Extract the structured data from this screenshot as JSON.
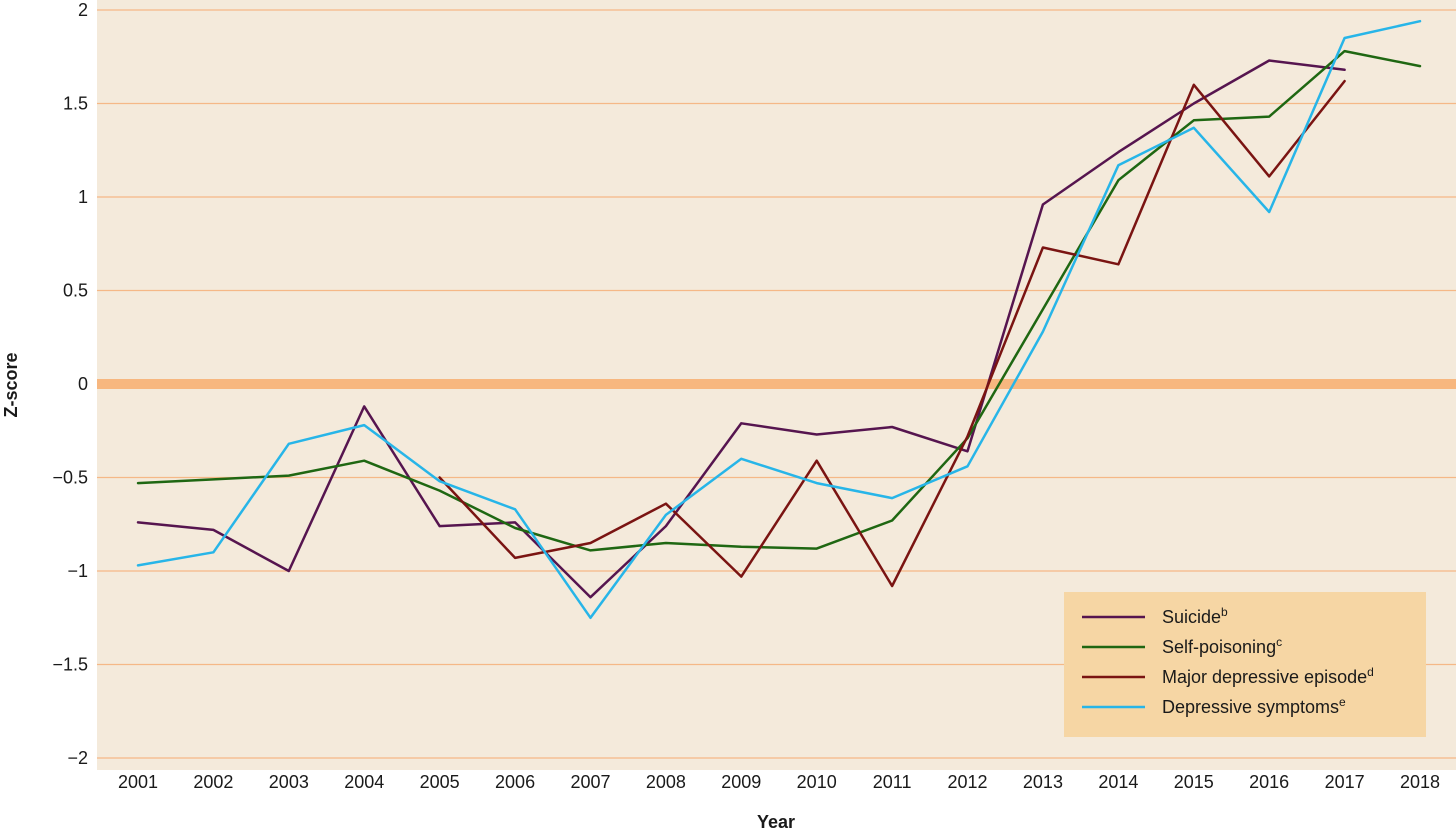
{
  "chart_data": {
    "type": "line",
    "title": "",
    "xlabel": "Year",
    "ylabel": "Z-score",
    "ylim": [
      -2,
      2
    ],
    "yticks": [
      2,
      1.5,
      1,
      0.5,
      0,
      -0.5,
      -1,
      -1.5,
      -2
    ],
    "ytick_labels": [
      "2",
      "1.5",
      "1",
      "0.5",
      "0",
      "−0.5",
      "−1",
      "−1.5",
      "−2"
    ],
    "x": [
      "2001",
      "2002",
      "2003",
      "2004",
      "2005",
      "2006",
      "2007",
      "2008",
      "2009",
      "2010",
      "2011",
      "2012",
      "2013",
      "2014",
      "2015",
      "2016",
      "2017",
      "2018"
    ],
    "grid": true,
    "legend_position": "bottom-right",
    "colors": {
      "background": "#f4eadb",
      "gridline": "#f5b887",
      "zero_line": "#f7b77f",
      "legend_bg": "#f6d6a4"
    },
    "series": [
      {
        "name": "Suicide",
        "superscript": "b",
        "color": "#56154f",
        "values": [
          -0.74,
          -0.78,
          -1.0,
          -0.12,
          -0.76,
          -0.74,
          -1.14,
          -0.76,
          -0.21,
          -0.27,
          -0.23,
          -0.36,
          0.96,
          1.24,
          1.5,
          1.73,
          1.68,
          null
        ]
      },
      {
        "name": "Self-poisoning",
        "superscript": "c",
        "color": "#1f6712",
        "values": [
          -0.53,
          -0.51,
          -0.49,
          -0.41,
          -0.57,
          -0.77,
          -0.89,
          -0.85,
          -0.87,
          -0.88,
          -0.73,
          -0.29,
          0.4,
          1.09,
          1.41,
          1.43,
          1.78,
          1.7
        ]
      },
      {
        "name": "Major depressive episode",
        "superscript": "d",
        "color": "#7a1412",
        "values": [
          null,
          null,
          null,
          null,
          -0.5,
          -0.93,
          -0.85,
          -0.64,
          -1.03,
          -0.41,
          -1.08,
          -0.28,
          0.73,
          0.64,
          1.6,
          1.11,
          1.62,
          null
        ]
      },
      {
        "name": "Depressive symptoms",
        "superscript": "e",
        "color": "#27b5e8",
        "values": [
          -0.97,
          -0.9,
          -0.32,
          -0.22,
          -0.52,
          -0.67,
          -1.25,
          -0.7,
          -0.4,
          -0.53,
          -0.61,
          -0.44,
          0.28,
          1.17,
          1.37,
          0.92,
          1.85,
          1.94
        ]
      }
    ]
  }
}
